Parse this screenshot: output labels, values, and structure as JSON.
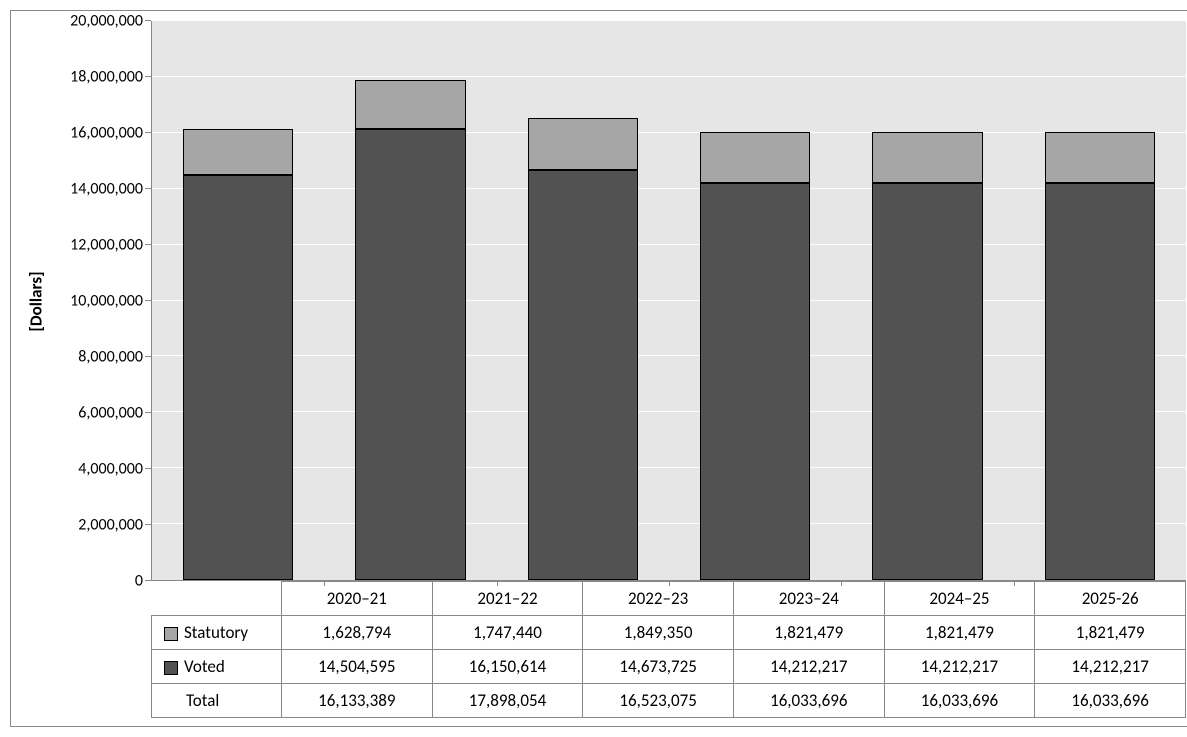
{
  "chart": {
    "type": "stacked-bar",
    "y_axis_label": "[Dollars]",
    "background_color": "#e6e6e6",
    "grid_color": "#ffffff",
    "border_color": "#888888",
    "axis_color": "#888888",
    "text_color": "#000000",
    "tick_fontsize": 16,
    "label_fontsize": 17,
    "ylabel_fontsize": 17,
    "ylabel_fontweight": "bold",
    "ylim_min": 0,
    "ylim_max": 20000000,
    "ytick_step": 2000000,
    "bar_width_pct": 64,
    "y_ticks": [
      {
        "value": 0,
        "label": "0"
      },
      {
        "value": 2000000,
        "label": "2,000,000"
      },
      {
        "value": 4000000,
        "label": "4,000,000"
      },
      {
        "value": 6000000,
        "label": "6,000,000"
      },
      {
        "value": 8000000,
        "label": "8,000,000"
      },
      {
        "value": 10000000,
        "label": "10,000,000"
      },
      {
        "value": 12000000,
        "label": "12,000,000"
      },
      {
        "value": 14000000,
        "label": "14,000,000"
      },
      {
        "value": 16000000,
        "label": "16,000,000"
      },
      {
        "value": 18000000,
        "label": "18,000,000"
      },
      {
        "value": 20000000,
        "label": "20,000,000"
      }
    ],
    "categories": [
      "2020–21",
      "2021–22",
      "2022–23",
      "2023–24",
      "2024–25",
      "2025-26"
    ],
    "series": [
      {
        "key": "statutory",
        "label": "Statutory",
        "color": "#a6a6a6"
      },
      {
        "key": "voted",
        "label": "Voted",
        "color": "#525252"
      }
    ],
    "data": {
      "statutory": {
        "values": [
          1628794,
          1747440,
          1849350,
          1821479,
          1821479,
          1821479
        ],
        "display": [
          "1,628,794",
          "1,747,440",
          "1,849,350",
          "1,821,479",
          "1,821,479",
          "1,821,479"
        ]
      },
      "voted": {
        "values": [
          14504595,
          16150614,
          14673725,
          14212217,
          14212217,
          14212217
        ],
        "display": [
          "14,504,595",
          "16,150,614",
          "14,673,725",
          "14,212,217",
          "14,212,217",
          "14,212,217"
        ]
      },
      "total": {
        "label": "Total",
        "values": [
          16133389,
          17898054,
          16523075,
          16033696,
          16033696,
          16033696
        ],
        "display": [
          "16,133,389",
          "17,898,054",
          "16,523,075",
          "16,033,696",
          "16,033,696",
          "16,033,696"
        ]
      }
    }
  }
}
